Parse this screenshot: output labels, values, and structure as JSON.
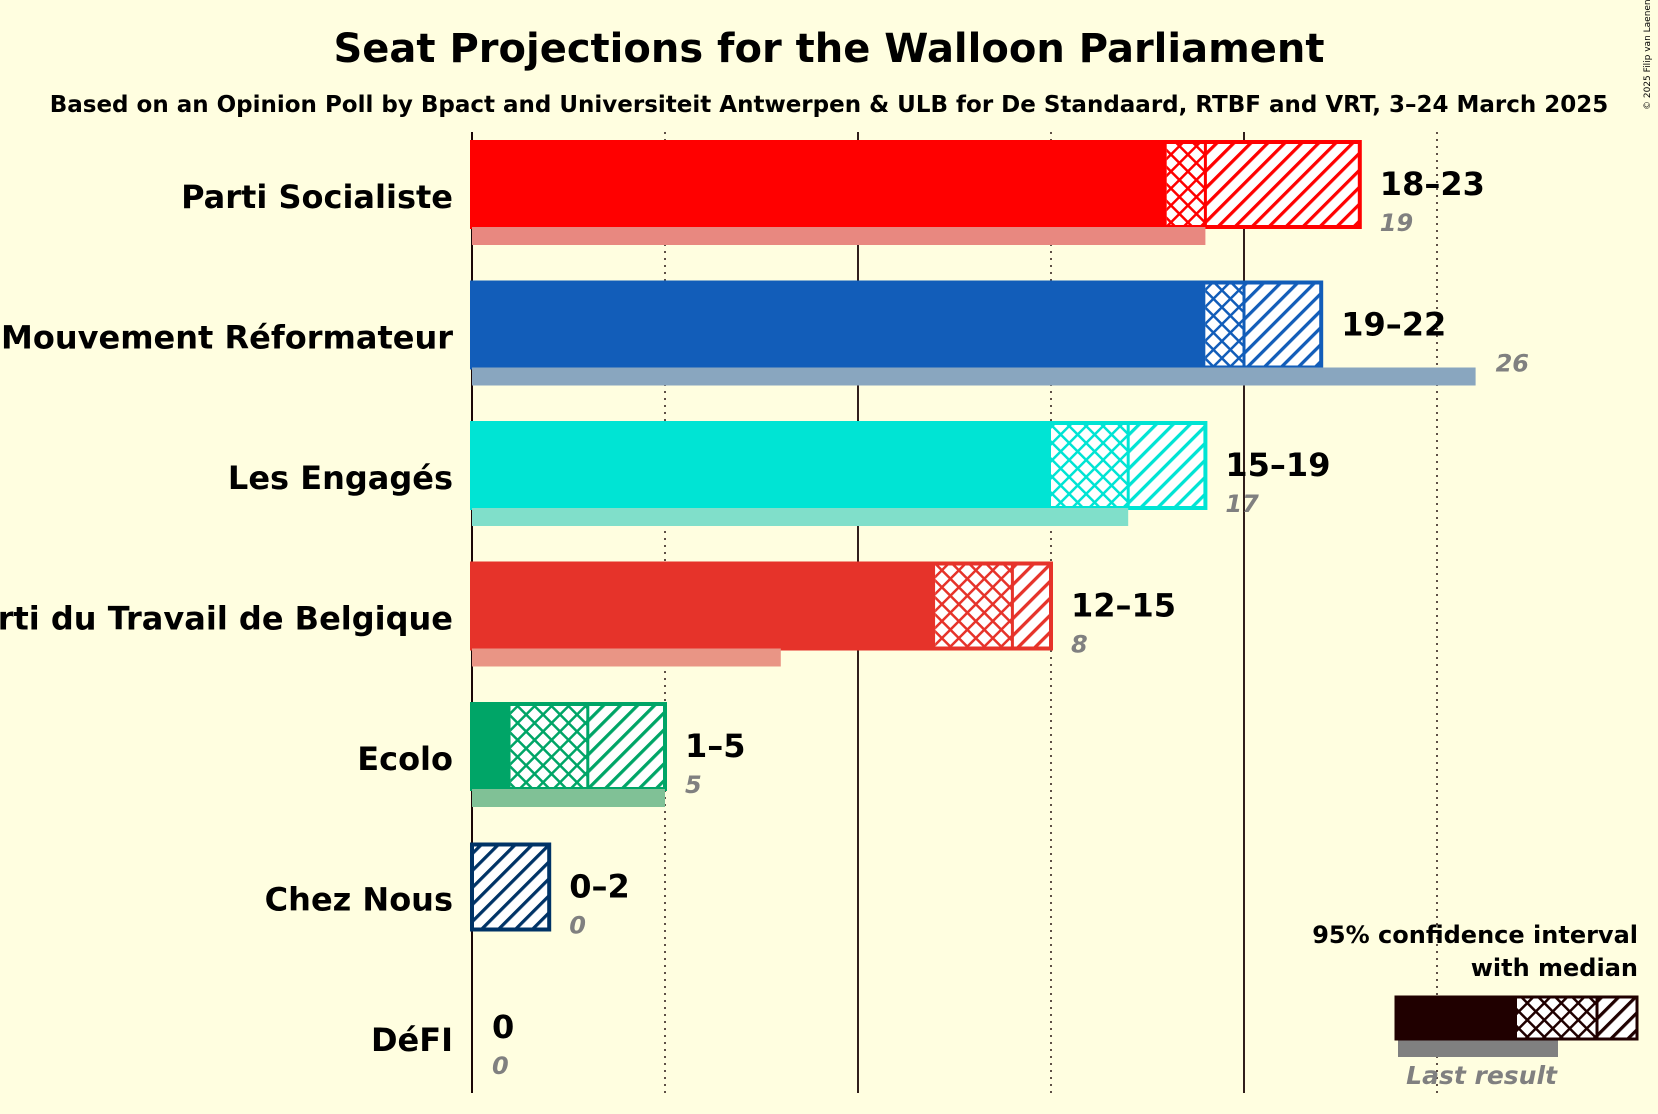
{
  "chart_data": {
    "type": "bar",
    "title": "Seat Projections for the Walloon Parliament",
    "subtitle": "Based on an Opinion Poll by Bpact and Universiteit Antwerpen & ULB for De Standaard, RTBF and VRT, 3–24 March 2025",
    "copyright": "© 2025 Filip van Laenen",
    "xlim": [
      0,
      26
    ],
    "gridlines": [
      5,
      10,
      15,
      20,
      25
    ],
    "parties": [
      {
        "name": "Parti Socialiste",
        "low": 18,
        "median": 19,
        "high": 23,
        "range_label": "18–23",
        "last": 19,
        "last_label": "19",
        "color": "#FF0000",
        "last_color": "#E88880"
      },
      {
        "name": "Mouvement Réformateur",
        "low": 19,
        "median": 20,
        "high": 22,
        "range_label": "19–22",
        "last": 26,
        "last_label": "26",
        "color": "#125DB9",
        "last_color": "#89A6BF"
      },
      {
        "name": "Les Engagés",
        "low": 15,
        "median": 17,
        "high": 19,
        "range_label": "15–19",
        "last": 17,
        "last_label": "17",
        "color": "#00E4D4",
        "last_color": "#80DFCA"
      },
      {
        "name": "Parti du Travail de Belgique",
        "low": 12,
        "median": 14,
        "high": 15,
        "range_label": "12–15",
        "last": 8,
        "last_label": "8",
        "color": "#E6332A",
        "last_color": "#E99585"
      },
      {
        "name": "Ecolo",
        "low": 1,
        "median": 3,
        "high": 5,
        "range_label": "1–5",
        "last": 5,
        "last_label": "5",
        "color": "#00A567",
        "last_color": "#80C196"
      },
      {
        "name": "Chez Nous",
        "low": 0,
        "median": 0,
        "high": 2,
        "range_label": "0–2",
        "last": 0,
        "last_label": "0",
        "color": "#003366",
        "last_color": "#808080"
      },
      {
        "name": "DéFI",
        "low": 0,
        "median": 0,
        "high": 0,
        "range_label": "0",
        "last": 0,
        "last_label": "0",
        "color": "#DD0081",
        "last_color": "#808080"
      }
    ],
    "legend": {
      "title_line1": "95% confidence interval",
      "title_line2": "with median",
      "last_result": "Last result",
      "placement": "bottom-right"
    }
  }
}
